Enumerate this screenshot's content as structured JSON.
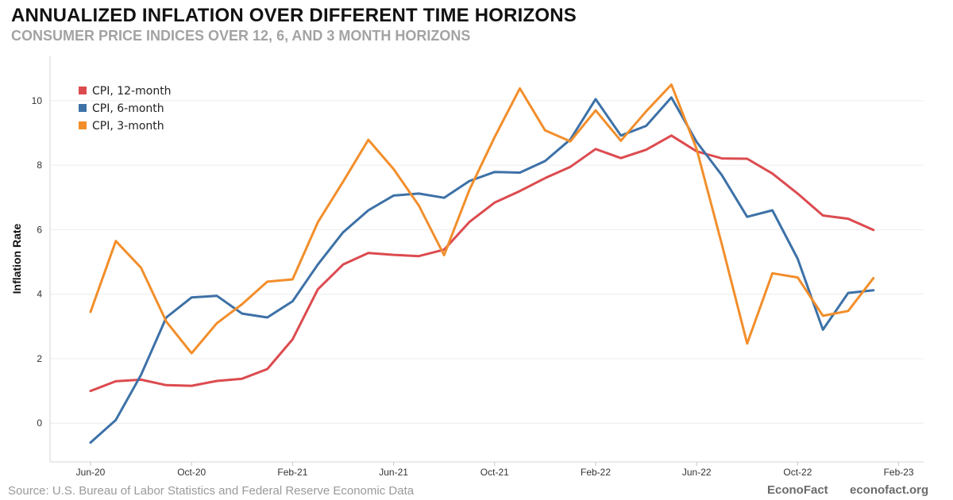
{
  "header": {
    "title": "ANNUALIZED INFLATION OVER DIFFERENT TIME HORIZONS",
    "subtitle": "CONSUMER PRICE INDICES OVER 12, 6, AND 3 MONTH HORIZONS"
  },
  "footer": {
    "source": "Source: U.S. Bureau of Labor Statistics and Federal Reserve Economic Data",
    "brand_name": "EconoFact",
    "brand_url": "econofact.org"
  },
  "chart_data": {
    "type": "line",
    "title": "ANNUALIZED INFLATION OVER DIFFERENT TIME HORIZONS",
    "subtitle": "CONSUMER PRICE INDICES OVER 12, 6, AND 3 MONTH HORIZONS",
    "xlabel": "",
    "ylabel": "Inflation Rate",
    "ylim": [
      -1.2,
      11.4
    ],
    "yticks": [
      0,
      2,
      4,
      6,
      8,
      10
    ],
    "grid": "horizontal",
    "legend_position": "top-left",
    "x": [
      "2020-06",
      "2020-07",
      "2020-08",
      "2020-09",
      "2020-10",
      "2020-11",
      "2020-12",
      "2021-01",
      "2021-02",
      "2021-03",
      "2021-04",
      "2021-05",
      "2021-06",
      "2021-07",
      "2021-08",
      "2021-09",
      "2021-10",
      "2021-11",
      "2021-12",
      "2022-01",
      "2022-02",
      "2022-03",
      "2022-04",
      "2022-05",
      "2022-06",
      "2022-07",
      "2022-08",
      "2022-09",
      "2022-10",
      "2022-11",
      "2022-12",
      "2023-01",
      "2023-02"
    ],
    "xticks": [
      {
        "x": "2020-06",
        "label": "Jun-20"
      },
      {
        "x": "2020-10",
        "label": "Oct-20"
      },
      {
        "x": "2021-02",
        "label": "Feb-21"
      },
      {
        "x": "2021-06",
        "label": "Jun-21"
      },
      {
        "x": "2021-10",
        "label": "Oct-21"
      },
      {
        "x": "2022-02",
        "label": "Feb-22"
      },
      {
        "x": "2022-06",
        "label": "Jun-22"
      },
      {
        "x": "2022-10",
        "label": "Oct-22"
      },
      {
        "x": "2023-02",
        "label": "Feb-23"
      }
    ],
    "series": [
      {
        "name": "CPI, 12-month",
        "color": "#dc4b4f",
        "values": [
          1.0,
          1.3,
          1.35,
          1.18,
          1.16,
          1.31,
          1.38,
          1.68,
          2.6,
          4.15,
          4.92,
          5.28,
          5.22,
          5.18,
          5.38,
          6.24,
          6.84,
          7.2,
          7.6,
          7.95,
          8.5,
          8.22,
          8.48,
          8.92,
          8.43,
          8.21,
          8.2,
          7.74,
          7.12,
          6.44,
          6.34,
          5.99,
          null
        ]
      },
      {
        "name": "CPI, 6-month",
        "color": "#3d71a7",
        "values": [
          -0.6,
          0.1,
          1.5,
          3.28,
          3.9,
          3.95,
          3.4,
          3.28,
          3.78,
          4.92,
          5.92,
          6.6,
          7.06,
          7.12,
          6.99,
          7.51,
          7.79,
          7.77,
          8.13,
          8.8,
          10.05,
          8.92,
          9.22,
          10.1,
          8.72,
          7.69,
          6.4,
          6.6,
          5.1,
          2.9,
          4.04,
          4.12,
          null
        ]
      },
      {
        "name": "CPI, 3-month",
        "color": "#f28e2b",
        "values": [
          3.45,
          5.65,
          4.82,
          3.15,
          2.17,
          3.1,
          3.69,
          4.39,
          4.46,
          6.23,
          7.49,
          8.79,
          7.88,
          6.75,
          5.21,
          7.23,
          8.87,
          10.38,
          9.08,
          8.74,
          9.7,
          8.76,
          9.67,
          10.5,
          8.5,
          5.54,
          2.47,
          4.65,
          4.52,
          3.33,
          3.48,
          4.5,
          null
        ]
      }
    ]
  }
}
